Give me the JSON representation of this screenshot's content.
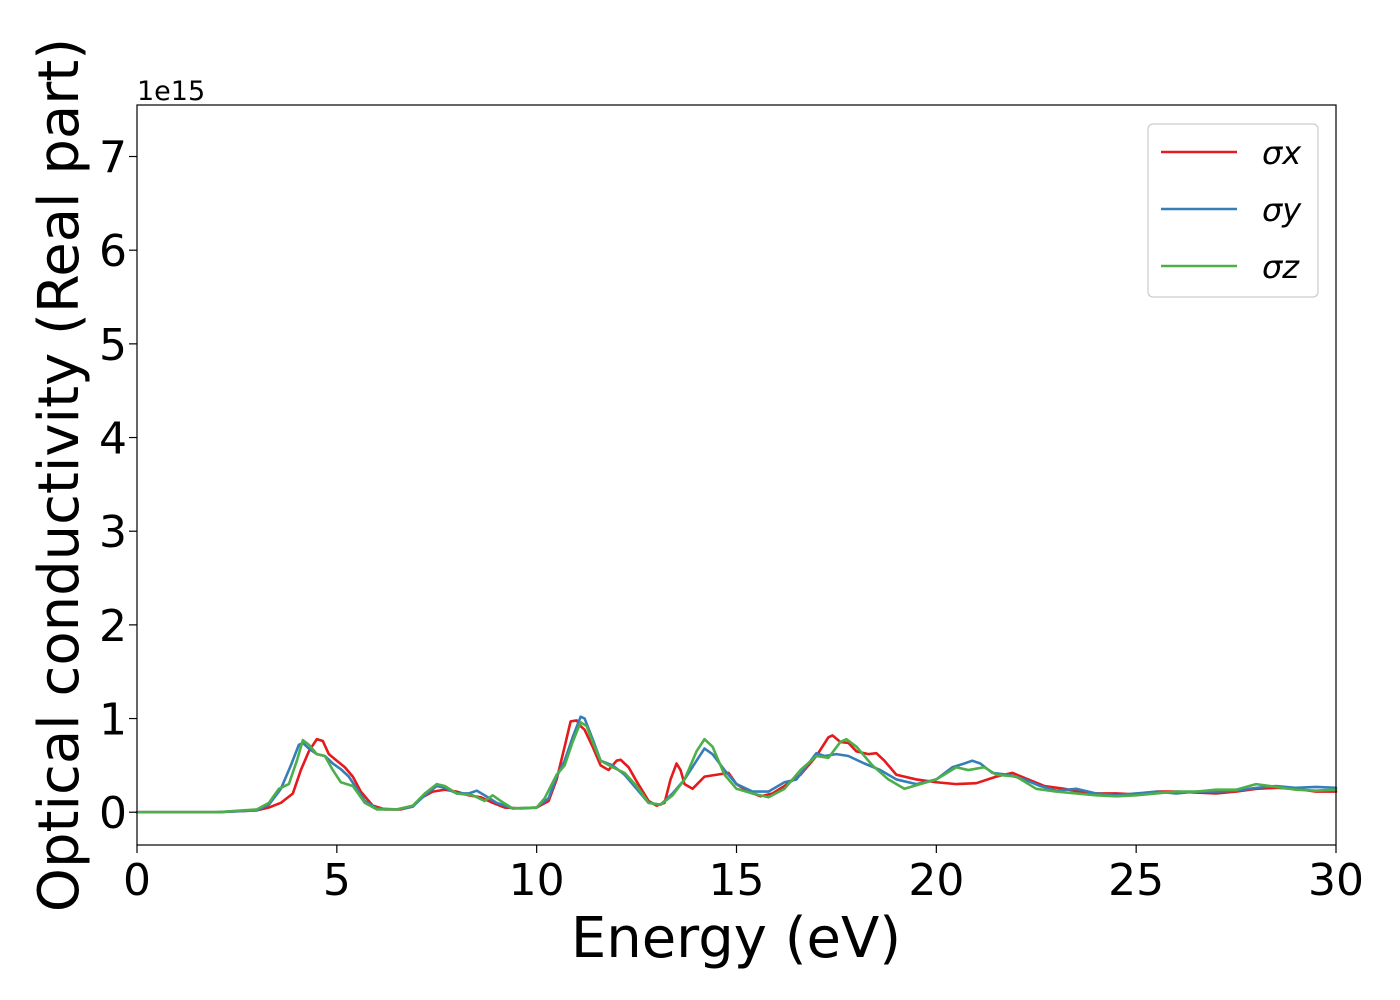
{
  "chart_data": {
    "type": "line",
    "xlabel": "Energy (eV)",
    "ylabel": "Optical conductivity (Real part)",
    "y_offset_label": "1e15",
    "xlim": [
      0,
      30
    ],
    "ylim": [
      -0.35,
      7.55
    ],
    "x_ticks": [
      0,
      5,
      10,
      15,
      20,
      25,
      30
    ],
    "y_ticks": [
      0,
      1,
      2,
      3,
      4,
      5,
      6,
      7
    ],
    "grid": false,
    "legend_position": "top-right",
    "series": [
      {
        "name": "σx",
        "color": "#e41a1c",
        "points": [
          [
            0,
            0
          ],
          [
            2,
            0
          ],
          [
            3,
            0.02
          ],
          [
            3.3,
            0.05
          ],
          [
            3.6,
            0.1
          ],
          [
            3.9,
            0.2
          ],
          [
            4.1,
            0.45
          ],
          [
            4.3,
            0.65
          ],
          [
            4.5,
            0.78
          ],
          [
            4.65,
            0.76
          ],
          [
            4.8,
            0.62
          ],
          [
            5.0,
            0.55
          ],
          [
            5.2,
            0.48
          ],
          [
            5.4,
            0.38
          ],
          [
            5.6,
            0.22
          ],
          [
            5.9,
            0.07
          ],
          [
            6.2,
            0.03
          ],
          [
            6.6,
            0.03
          ],
          [
            6.9,
            0.06
          ],
          [
            7.1,
            0.15
          ],
          [
            7.4,
            0.22
          ],
          [
            7.7,
            0.24
          ],
          [
            8.0,
            0.22
          ],
          [
            8.3,
            0.18
          ],
          [
            8.6,
            0.16
          ],
          [
            8.9,
            0.1
          ],
          [
            9.2,
            0.05
          ],
          [
            9.6,
            0.04
          ],
          [
            10.0,
            0.05
          ],
          [
            10.3,
            0.12
          ],
          [
            10.5,
            0.35
          ],
          [
            10.7,
            0.7
          ],
          [
            10.85,
            0.97
          ],
          [
            11.0,
            0.98
          ],
          [
            11.1,
            0.92
          ],
          [
            11.2,
            0.88
          ],
          [
            11.4,
            0.7
          ],
          [
            11.6,
            0.5
          ],
          [
            11.8,
            0.45
          ],
          [
            12.0,
            0.55
          ],
          [
            12.1,
            0.56
          ],
          [
            12.3,
            0.48
          ],
          [
            12.5,
            0.33
          ],
          [
            12.8,
            0.12
          ],
          [
            13.0,
            0.07
          ],
          [
            13.2,
            0.1
          ],
          [
            13.35,
            0.35
          ],
          [
            13.5,
            0.52
          ],
          [
            13.6,
            0.45
          ],
          [
            13.7,
            0.3
          ],
          [
            13.9,
            0.25
          ],
          [
            14.2,
            0.38
          ],
          [
            14.5,
            0.4
          ],
          [
            14.8,
            0.42
          ],
          [
            15.0,
            0.3
          ],
          [
            15.3,
            0.22
          ],
          [
            15.6,
            0.17
          ],
          [
            15.9,
            0.2
          ],
          [
            16.2,
            0.28
          ],
          [
            16.6,
            0.4
          ],
          [
            17.0,
            0.6
          ],
          [
            17.3,
            0.8
          ],
          [
            17.4,
            0.82
          ],
          [
            17.6,
            0.75
          ],
          [
            17.8,
            0.74
          ],
          [
            18.0,
            0.65
          ],
          [
            18.3,
            0.62
          ],
          [
            18.5,
            0.63
          ],
          [
            18.7,
            0.55
          ],
          [
            19.0,
            0.4
          ],
          [
            19.5,
            0.35
          ],
          [
            20.0,
            0.32
          ],
          [
            20.5,
            0.3
          ],
          [
            21.0,
            0.31
          ],
          [
            21.5,
            0.38
          ],
          [
            21.9,
            0.42
          ],
          [
            22.3,
            0.35
          ],
          [
            22.7,
            0.28
          ],
          [
            23.2,
            0.25
          ],
          [
            23.8,
            0.2
          ],
          [
            24.5,
            0.2
          ],
          [
            25,
            0.19
          ],
          [
            25.5,
            0.22
          ],
          [
            26,
            0.22
          ],
          [
            26.5,
            0.21
          ],
          [
            27,
            0.2
          ],
          [
            27.5,
            0.22
          ],
          [
            28,
            0.25
          ],
          [
            28.5,
            0.26
          ],
          [
            29,
            0.25
          ],
          [
            29.5,
            0.22
          ],
          [
            30,
            0.22
          ]
        ]
      },
      {
        "name": "σy",
        "color": "#377eb8",
        "points": [
          [
            0,
            0
          ],
          [
            2,
            0
          ],
          [
            3,
            0.02
          ],
          [
            3.3,
            0.08
          ],
          [
            3.6,
            0.25
          ],
          [
            3.85,
            0.5
          ],
          [
            4.05,
            0.72
          ],
          [
            4.15,
            0.74
          ],
          [
            4.3,
            0.68
          ],
          [
            4.5,
            0.62
          ],
          [
            4.7,
            0.6
          ],
          [
            4.9,
            0.52
          ],
          [
            5.1,
            0.46
          ],
          [
            5.3,
            0.38
          ],
          [
            5.5,
            0.25
          ],
          [
            5.7,
            0.12
          ],
          [
            6.0,
            0.04
          ],
          [
            6.5,
            0.03
          ],
          [
            6.9,
            0.06
          ],
          [
            7.2,
            0.18
          ],
          [
            7.5,
            0.28
          ],
          [
            7.7,
            0.26
          ],
          [
            8.0,
            0.2
          ],
          [
            8.3,
            0.2
          ],
          [
            8.5,
            0.23
          ],
          [
            8.7,
            0.18
          ],
          [
            9.0,
            0.1
          ],
          [
            9.4,
            0.04
          ],
          [
            10.0,
            0.05
          ],
          [
            10.3,
            0.15
          ],
          [
            10.5,
            0.38
          ],
          [
            10.7,
            0.55
          ],
          [
            10.9,
            0.8
          ],
          [
            11.1,
            1.02
          ],
          [
            11.2,
            1.0
          ],
          [
            11.4,
            0.78
          ],
          [
            11.6,
            0.55
          ],
          [
            11.9,
            0.5
          ],
          [
            12.2,
            0.4
          ],
          [
            12.5,
            0.25
          ],
          [
            12.8,
            0.1
          ],
          [
            13.1,
            0.08
          ],
          [
            13.4,
            0.2
          ],
          [
            13.7,
            0.35
          ],
          [
            14.0,
            0.55
          ],
          [
            14.2,
            0.68
          ],
          [
            14.4,
            0.62
          ],
          [
            14.7,
            0.45
          ],
          [
            15.0,
            0.3
          ],
          [
            15.4,
            0.22
          ],
          [
            15.8,
            0.22
          ],
          [
            16.2,
            0.32
          ],
          [
            16.5,
            0.35
          ],
          [
            16.8,
            0.52
          ],
          [
            17.0,
            0.63
          ],
          [
            17.2,
            0.6
          ],
          [
            17.5,
            0.62
          ],
          [
            17.8,
            0.6
          ],
          [
            18.2,
            0.52
          ],
          [
            18.6,
            0.45
          ],
          [
            19.0,
            0.35
          ],
          [
            19.5,
            0.3
          ],
          [
            20.0,
            0.35
          ],
          [
            20.4,
            0.48
          ],
          [
            20.7,
            0.52
          ],
          [
            20.9,
            0.55
          ],
          [
            21.1,
            0.52
          ],
          [
            21.4,
            0.42
          ],
          [
            21.8,
            0.4
          ],
          [
            22.2,
            0.35
          ],
          [
            22.6,
            0.28
          ],
          [
            23.0,
            0.23
          ],
          [
            23.5,
            0.25
          ],
          [
            24,
            0.2
          ],
          [
            24.5,
            0.18
          ],
          [
            25,
            0.2
          ],
          [
            25.5,
            0.22
          ],
          [
            26,
            0.2
          ],
          [
            26.5,
            0.22
          ],
          [
            27,
            0.22
          ],
          [
            27.5,
            0.23
          ],
          [
            28,
            0.26
          ],
          [
            28.5,
            0.28
          ],
          [
            29,
            0.26
          ],
          [
            29.5,
            0.27
          ],
          [
            30,
            0.26
          ]
        ]
      },
      {
        "name": "σz",
        "color": "#4daf4a",
        "points": [
          [
            0,
            0
          ],
          [
            2,
            0
          ],
          [
            3,
            0.03
          ],
          [
            3.3,
            0.1
          ],
          [
            3.55,
            0.25
          ],
          [
            3.8,
            0.3
          ],
          [
            4.0,
            0.55
          ],
          [
            4.15,
            0.77
          ],
          [
            4.3,
            0.72
          ],
          [
            4.5,
            0.62
          ],
          [
            4.7,
            0.6
          ],
          [
            4.9,
            0.45
          ],
          [
            5.1,
            0.32
          ],
          [
            5.4,
            0.28
          ],
          [
            5.7,
            0.1
          ],
          [
            6.0,
            0.03
          ],
          [
            6.5,
            0.03
          ],
          [
            6.9,
            0.07
          ],
          [
            7.2,
            0.2
          ],
          [
            7.5,
            0.3
          ],
          [
            7.7,
            0.28
          ],
          [
            8.0,
            0.2
          ],
          [
            8.4,
            0.18
          ],
          [
            8.7,
            0.12
          ],
          [
            8.9,
            0.18
          ],
          [
            9.1,
            0.12
          ],
          [
            9.4,
            0.04
          ],
          [
            10.0,
            0.05
          ],
          [
            10.2,
            0.15
          ],
          [
            10.5,
            0.4
          ],
          [
            10.7,
            0.5
          ],
          [
            10.9,
            0.75
          ],
          [
            11.1,
            0.96
          ],
          [
            11.25,
            0.92
          ],
          [
            11.4,
            0.75
          ],
          [
            11.6,
            0.55
          ],
          [
            11.9,
            0.48
          ],
          [
            12.2,
            0.42
          ],
          [
            12.5,
            0.28
          ],
          [
            12.8,
            0.1
          ],
          [
            13.1,
            0.08
          ],
          [
            13.4,
            0.18
          ],
          [
            13.7,
            0.35
          ],
          [
            14.0,
            0.65
          ],
          [
            14.2,
            0.78
          ],
          [
            14.4,
            0.7
          ],
          [
            14.7,
            0.4
          ],
          [
            15.0,
            0.25
          ],
          [
            15.4,
            0.2
          ],
          [
            15.8,
            0.16
          ],
          [
            16.2,
            0.25
          ],
          [
            16.6,
            0.45
          ],
          [
            17.0,
            0.6
          ],
          [
            17.3,
            0.58
          ],
          [
            17.6,
            0.75
          ],
          [
            17.75,
            0.78
          ],
          [
            18.0,
            0.7
          ],
          [
            18.4,
            0.5
          ],
          [
            18.8,
            0.35
          ],
          [
            19.2,
            0.25
          ],
          [
            19.6,
            0.3
          ],
          [
            20.0,
            0.35
          ],
          [
            20.5,
            0.48
          ],
          [
            20.8,
            0.45
          ],
          [
            21.2,
            0.48
          ],
          [
            21.5,
            0.4
          ],
          [
            22.0,
            0.38
          ],
          [
            22.5,
            0.25
          ],
          [
            23.0,
            0.22
          ],
          [
            23.5,
            0.2
          ],
          [
            24,
            0.18
          ],
          [
            24.5,
            0.17
          ],
          [
            25,
            0.18
          ],
          [
            25.5,
            0.2
          ],
          [
            26,
            0.22
          ],
          [
            26.5,
            0.22
          ],
          [
            27,
            0.24
          ],
          [
            27.5,
            0.24
          ],
          [
            28,
            0.3
          ],
          [
            28.5,
            0.27
          ],
          [
            29,
            0.24
          ],
          [
            29.5,
            0.23
          ],
          [
            30,
            0.24
          ]
        ]
      }
    ]
  }
}
